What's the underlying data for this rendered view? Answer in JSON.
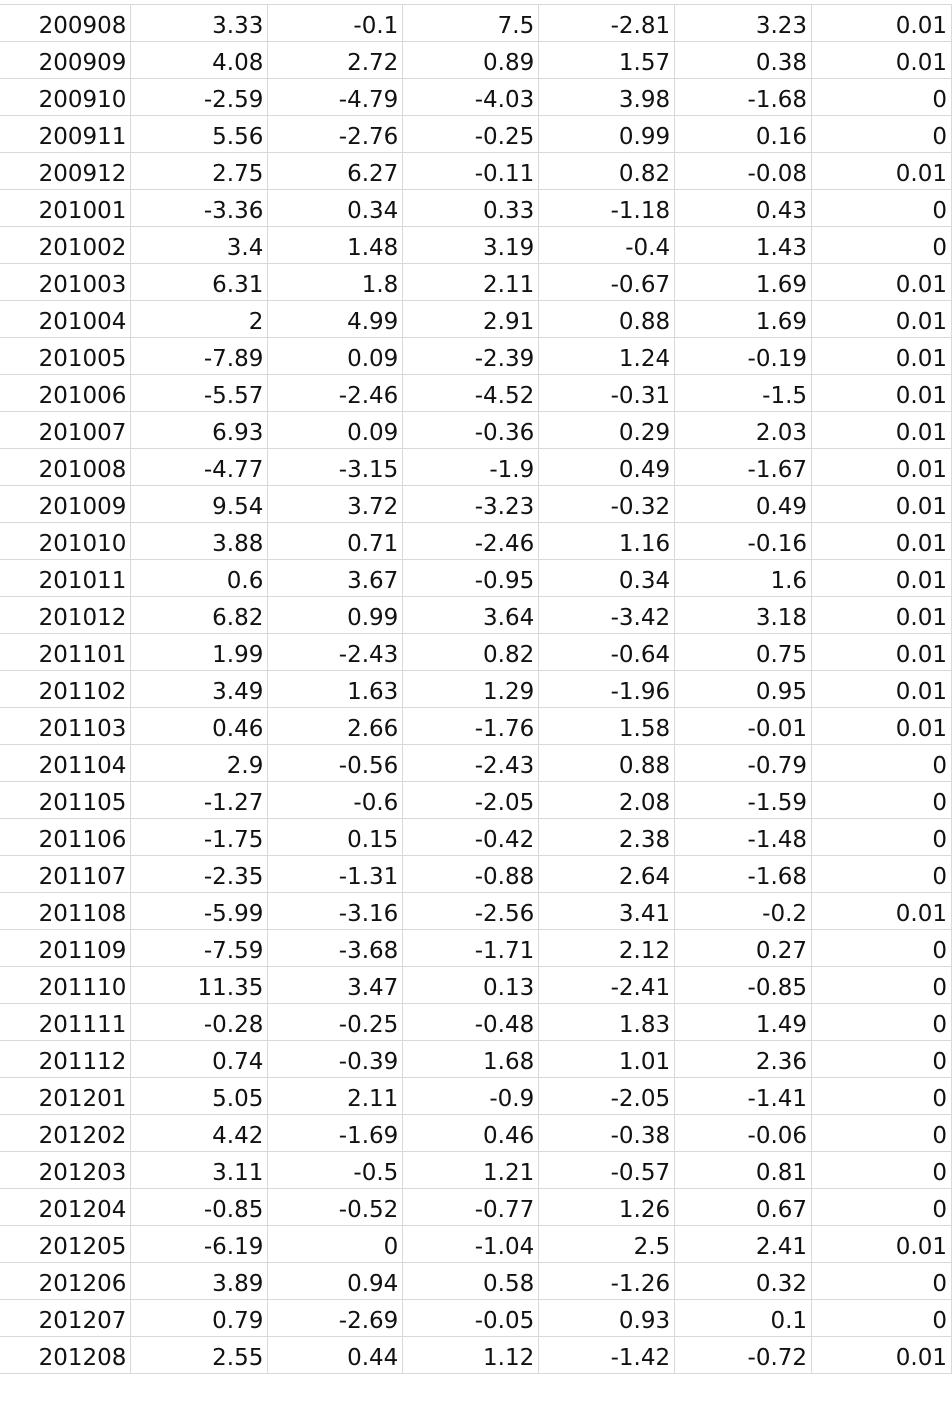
{
  "sheet": {
    "rows": [
      [
        "200908",
        "3.33",
        "-0.1",
        "7.5",
        "-2.81",
        "3.23",
        "0.01"
      ],
      [
        "200909",
        "4.08",
        "2.72",
        "0.89",
        "1.57",
        "0.38",
        "0.01"
      ],
      [
        "200910",
        "-2.59",
        "-4.79",
        "-4.03",
        "3.98",
        "-1.68",
        "0"
      ],
      [
        "200911",
        "5.56",
        "-2.76",
        "-0.25",
        "0.99",
        "0.16",
        "0"
      ],
      [
        "200912",
        "2.75",
        "6.27",
        "-0.11",
        "0.82",
        "-0.08",
        "0.01"
      ],
      [
        "201001",
        "-3.36",
        "0.34",
        "0.33",
        "-1.18",
        "0.43",
        "0"
      ],
      [
        "201002",
        "3.4",
        "1.48",
        "3.19",
        "-0.4",
        "1.43",
        "0"
      ],
      [
        "201003",
        "6.31",
        "1.8",
        "2.11",
        "-0.67",
        "1.69",
        "0.01"
      ],
      [
        "201004",
        "2",
        "4.99",
        "2.91",
        "0.88",
        "1.69",
        "0.01"
      ],
      [
        "201005",
        "-7.89",
        "0.09",
        "-2.39",
        "1.24",
        "-0.19",
        "0.01"
      ],
      [
        "201006",
        "-5.57",
        "-2.46",
        "-4.52",
        "-0.31",
        "-1.5",
        "0.01"
      ],
      [
        "201007",
        "6.93",
        "0.09",
        "-0.36",
        "0.29",
        "2.03",
        "0.01"
      ],
      [
        "201008",
        "-4.77",
        "-3.15",
        "-1.9",
        "0.49",
        "-1.67",
        "0.01"
      ],
      [
        "201009",
        "9.54",
        "3.72",
        "-3.23",
        "-0.32",
        "0.49",
        "0.01"
      ],
      [
        "201010",
        "3.88",
        "0.71",
        "-2.46",
        "1.16",
        "-0.16",
        "0.01"
      ],
      [
        "201011",
        "0.6",
        "3.67",
        "-0.95",
        "0.34",
        "1.6",
        "0.01"
      ],
      [
        "201012",
        "6.82",
        "0.99",
        "3.64",
        "-3.42",
        "3.18",
        "0.01"
      ],
      [
        "201101",
        "1.99",
        "-2.43",
        "0.82",
        "-0.64",
        "0.75",
        "0.01"
      ],
      [
        "201102",
        "3.49",
        "1.63",
        "1.29",
        "-1.96",
        "0.95",
        "0.01"
      ],
      [
        "201103",
        "0.46",
        "2.66",
        "-1.76",
        "1.58",
        "-0.01",
        "0.01"
      ],
      [
        "201104",
        "2.9",
        "-0.56",
        "-2.43",
        "0.88",
        "-0.79",
        "0"
      ],
      [
        "201105",
        "-1.27",
        "-0.6",
        "-2.05",
        "2.08",
        "-1.59",
        "0"
      ],
      [
        "201106",
        "-1.75",
        "0.15",
        "-0.42",
        "2.38",
        "-1.48",
        "0"
      ],
      [
        "201107",
        "-2.35",
        "-1.31",
        "-0.88",
        "2.64",
        "-1.68",
        "0"
      ],
      [
        "201108",
        "-5.99",
        "-3.16",
        "-2.56",
        "3.41",
        "-0.2",
        "0.01"
      ],
      [
        "201109",
        "-7.59",
        "-3.68",
        "-1.71",
        "2.12",
        "0.27",
        "0"
      ],
      [
        "201110",
        "11.35",
        "3.47",
        "0.13",
        "-2.41",
        "-0.85",
        "0"
      ],
      [
        "201111",
        "-0.28",
        "-0.25",
        "-0.48",
        "1.83",
        "1.49",
        "0"
      ],
      [
        "201112",
        "0.74",
        "-0.39",
        "1.68",
        "1.01",
        "2.36",
        "0"
      ],
      [
        "201201",
        "5.05",
        "2.11",
        "-0.9",
        "-2.05",
        "-1.41",
        "0"
      ],
      [
        "201202",
        "4.42",
        "-1.69",
        "0.46",
        "-0.38",
        "-0.06",
        "0"
      ],
      [
        "201203",
        "3.11",
        "-0.5",
        "1.21",
        "-0.57",
        "0.81",
        "0"
      ],
      [
        "201204",
        "-0.85",
        "-0.52",
        "-0.77",
        "1.26",
        "0.67",
        "0"
      ],
      [
        "201205",
        "-6.19",
        "0",
        "-1.04",
        "2.5",
        "2.41",
        "0.01"
      ],
      [
        "201206",
        "3.89",
        "0.94",
        "0.58",
        "-1.26",
        "0.32",
        "0"
      ],
      [
        "201207",
        "0.79",
        "-2.69",
        "-0.05",
        "0.93",
        "0.1",
        "0"
      ],
      [
        "201208",
        "2.55",
        "0.44",
        "1.12",
        "-1.42",
        "-0.72",
        "0.01"
      ]
    ]
  }
}
